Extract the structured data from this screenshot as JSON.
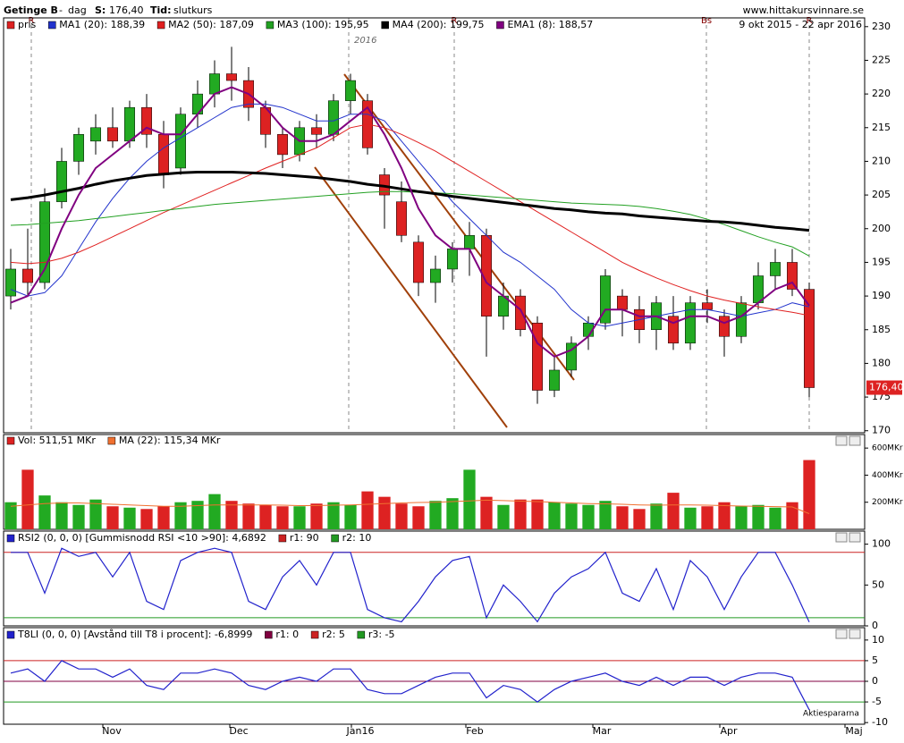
{
  "header": {
    "name": "Getinge B",
    "sep": "-",
    "period": "dag",
    "price_label": "S:",
    "price": "176,40",
    "time_label": "Tid:",
    "time": "slutkurs",
    "site": "www.hittakursvinnare.se",
    "range": "9 okt 2015 - 22 apr 2016",
    "year_mark": "2016",
    "markers": [
      "R",
      "R",
      "Bs",
      "R"
    ],
    "watermark": "Aktiespararna"
  },
  "x_labels": [
    "Nov",
    "Dec",
    "Jan16",
    "Feb",
    "Mar",
    "Apr",
    "Maj"
  ],
  "chart_data": [
    {
      "type": "candlestick",
      "legend": "pris",
      "up_color": "#22aa22",
      "down_color": "#dd2222",
      "open": [
        190,
        194,
        192,
        204,
        210,
        213,
        215,
        213,
        218,
        214,
        209,
        217,
        220,
        223,
        222,
        218,
        214,
        211,
        215,
        214,
        219,
        219,
        208,
        204,
        198,
        192,
        194,
        197,
        199,
        187,
        190,
        186,
        176,
        179,
        184,
        186,
        190,
        188,
        185,
        187,
        183,
        189,
        187,
        184,
        189,
        193,
        195,
        191
      ],
      "high": [
        197,
        200,
        206,
        212,
        215,
        217,
        218,
        219,
        220,
        216,
        218,
        222,
        225,
        227,
        224,
        219,
        215,
        216,
        217,
        220,
        223,
        220,
        209,
        207,
        199,
        196,
        198,
        201,
        200,
        192,
        191,
        187,
        181,
        184,
        187,
        194,
        191,
        190,
        190,
        190,
        190,
        191,
        188,
        190,
        195,
        197,
        197,
        192
      ],
      "low": [
        188,
        190,
        191,
        203,
        208,
        211,
        212,
        212,
        212,
        206,
        208,
        215,
        218,
        219,
        216,
        212,
        209,
        210,
        212,
        213,
        217,
        211,
        200,
        198,
        190,
        189,
        192,
        193,
        181,
        185,
        184,
        174,
        175,
        178,
        182,
        185,
        184,
        183,
        182,
        182,
        182,
        186,
        181,
        183,
        188,
        191,
        190,
        175
      ],
      "close": [
        194,
        192,
        204,
        210,
        214,
        215,
        213,
        218,
        214,
        208,
        217,
        220,
        223,
        222,
        218,
        214,
        211,
        215,
        214,
        219,
        222,
        212,
        205,
        199,
        192,
        194,
        197,
        199,
        187,
        190,
        185,
        176,
        179,
        183,
        186,
        193,
        188,
        185,
        189,
        183,
        189,
        188,
        184,
        189,
        193,
        195,
        191,
        176.4
      ],
      "ylim": [
        169.7,
        231.3
      ],
      "yticks": [
        170,
        175,
        180,
        185,
        190,
        195,
        200,
        205,
        210,
        215,
        220,
        225,
        230
      ],
      "series": [
        {
          "name": "MA1 (20): 188,39",
          "color": "#2233cc",
          "width": 1,
          "values": [
            191,
            190,
            190.5,
            193,
            197,
            201,
            204.5,
            207.5,
            210,
            212,
            213.5,
            215,
            216.5,
            218,
            218.5,
            218.5,
            218,
            217,
            216,
            216,
            217,
            217,
            216,
            213,
            210,
            207,
            204,
            201.5,
            199,
            196.5,
            195,
            193,
            191,
            188,
            186,
            185.5,
            186,
            186.5,
            187,
            187.5,
            188,
            188,
            187.5,
            187,
            187.5,
            188,
            189,
            188.39
          ]
        },
        {
          "name": "MA2 (50): 187,09",
          "color": "#e02020",
          "width": 1,
          "values": [
            195,
            194.8,
            195,
            195.6,
            196.5,
            197.6,
            198.8,
            200,
            201.2,
            202.4,
            203.5,
            204.6,
            205.7,
            206.8,
            207.9,
            209,
            210,
            211,
            212,
            213.5,
            215,
            215.5,
            215,
            214,
            212.8,
            211.5,
            210,
            208.5,
            207,
            205.5,
            204,
            202.5,
            201,
            199.5,
            198,
            196.5,
            195,
            193.8,
            192.7,
            191.7,
            190.8,
            190,
            189.4,
            188.9,
            188.4,
            188,
            187.6,
            187.09
          ]
        },
        {
          "name": "MA3 (100): 195,95",
          "color": "#22a022",
          "width": 1,
          "values": [
            200.5,
            200.6,
            200.8,
            201,
            201.2,
            201.5,
            201.8,
            202.1,
            202.4,
            202.7,
            203,
            203.3,
            203.6,
            203.8,
            204,
            204.2,
            204.4,
            204.6,
            204.8,
            205,
            205.2,
            205.4,
            205.5,
            205.5,
            205.4,
            205.3,
            205.2,
            205,
            204.8,
            204.6,
            204.4,
            204.2,
            204,
            203.8,
            203.7,
            203.6,
            203.5,
            203.3,
            203,
            202.6,
            202.1,
            201.4,
            200.6,
            199.7,
            198.8,
            198,
            197.3,
            195.95
          ]
        },
        {
          "name": "MA4 (200): 199,75",
          "color": "#000000",
          "width": 3,
          "values": [
            204.3,
            204.6,
            205,
            205.5,
            206,
            206.6,
            207.1,
            207.5,
            207.9,
            208.1,
            208.3,
            208.4,
            208.4,
            208.4,
            208.3,
            208.2,
            208,
            207.8,
            207.6,
            207.3,
            207,
            206.6,
            206.3,
            205.9,
            205.5,
            205.2,
            204.8,
            204.5,
            204.2,
            203.9,
            203.6,
            203.3,
            203,
            202.8,
            202.5,
            202.3,
            202.2,
            201.9,
            201.7,
            201.5,
            201.3,
            201.1,
            201,
            200.8,
            200.5,
            200.2,
            200,
            199.75
          ]
        },
        {
          "name": "EMA1 (8): 188,57",
          "color": "#800080",
          "width": 2,
          "values": [
            189,
            190,
            194,
            200,
            205,
            209,
            211,
            213,
            215,
            214,
            214,
            217,
            220,
            221,
            220,
            218,
            215,
            213,
            213,
            214,
            216,
            218,
            214,
            209,
            203,
            199,
            197,
            197,
            192,
            190,
            188,
            183,
            181,
            182,
            184,
            188,
            188,
            187,
            187,
            186,
            187,
            187,
            186,
            187,
            189,
            191,
            192,
            188.57
          ]
        }
      ]
    },
    {
      "type": "volume",
      "legend": "Vol: 511,51 MKr",
      "ma_legend": "MA (22): 115,34 MKr",
      "ma_color": "#f07030",
      "values": [
        200,
        440,
        250,
        200,
        180,
        220,
        170,
        160,
        150,
        170,
        200,
        210,
        260,
        210,
        190,
        180,
        170,
        170,
        190,
        200,
        180,
        280,
        240,
        190,
        170,
        210,
        230,
        440,
        240,
        180,
        220,
        220,
        200,
        190,
        180,
        210,
        170,
        150,
        190,
        270,
        160,
        170,
        200,
        170,
        180,
        160,
        200,
        511.51
      ],
      "ma": [
        170,
        180,
        190,
        195,
        195,
        190,
        185,
        180,
        175,
        170,
        170,
        175,
        180,
        180,
        180,
        180,
        178,
        175,
        175,
        178,
        180,
        185,
        190,
        195,
        198,
        200,
        205,
        210,
        215,
        212,
        208,
        205,
        200,
        195,
        190,
        188,
        185,
        180,
        178,
        180,
        180,
        178,
        175,
        172,
        170,
        168,
        165,
        115.34
      ],
      "ylim": [
        0,
        700
      ],
      "yticks": [
        {
          "value": 200,
          "label": "200MKr"
        },
        {
          "value": 400,
          "label": "400MKr"
        },
        {
          "value": 600,
          "label": "600MKr"
        }
      ]
    },
    {
      "type": "line",
      "legend": "RSI2 (0, 0, 0) [Gummisnodd RSI <10 >90]: 4,6892",
      "color": "#2222cc",
      "values": [
        90,
        90,
        40,
        95,
        85,
        90,
        60,
        90,
        30,
        20,
        80,
        90,
        95,
        90,
        30,
        20,
        60,
        80,
        50,
        90,
        90,
        20,
        10,
        5,
        30,
        60,
        80,
        85,
        10,
        50,
        30,
        5,
        40,
        60,
        70,
        90,
        40,
        30,
        70,
        20,
        80,
        60,
        20,
        60,
        90,
        90,
        50,
        4.69
      ],
      "ylim": [
        0,
        116
      ],
      "yticks": [
        0,
        50,
        100
      ],
      "levels": [
        {
          "value": 90,
          "label": "r1: 90",
          "color": "#cc2222"
        },
        {
          "value": 10,
          "label": "r2: 10",
          "color": "#229922"
        }
      ]
    },
    {
      "type": "line",
      "legend": "T8LI (0, 0, 0) [Avstånd till T8 i procent]: -6,8999",
      "color": "#2222cc",
      "values": [
        2,
        3,
        0,
        5,
        3,
        3,
        1,
        3,
        -1,
        -2,
        2,
        2,
        3,
        2,
        -1,
        -2,
        0,
        1,
        0,
        3,
        3,
        -2,
        -3,
        -3,
        -1,
        1,
        2,
        2,
        -4,
        -1,
        -2,
        -5,
        -2,
        0,
        1,
        2,
        0,
        -1,
        1,
        -1,
        1,
        1,
        -1,
        1,
        2,
        2,
        1,
        -6.8999
      ],
      "ylim": [
        -10.4,
        13
      ],
      "yticks": [
        -10,
        -5,
        0,
        5,
        10
      ],
      "levels": [
        {
          "value": 0,
          "label": "r1: 0",
          "color": "#800040"
        },
        {
          "value": 5,
          "label": "r2: 5",
          "color": "#cc2222"
        },
        {
          "value": -5,
          "label": "r3: -5",
          "color": "#229922"
        }
      ]
    }
  ]
}
